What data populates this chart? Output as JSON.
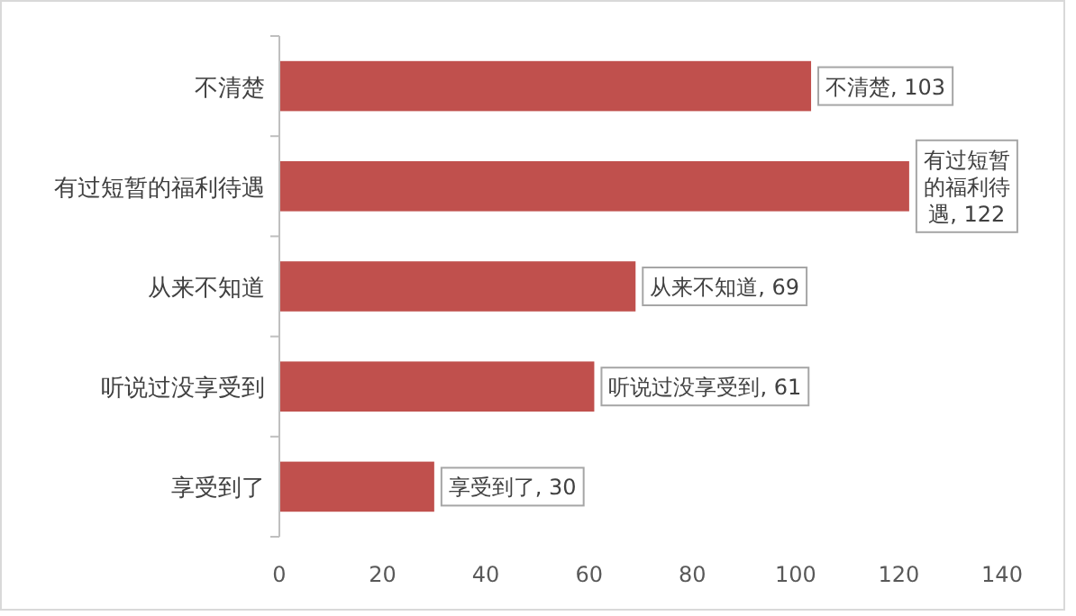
{
  "chart_data": {
    "type": "bar",
    "orientation": "horizontal",
    "categories": [
      "不清楚",
      "有过短暂的福利待遇",
      "从来不知道",
      "听说过没享受到",
      "享受到了"
    ],
    "values": [
      103,
      122,
      69,
      61,
      30
    ],
    "color": "#c0504d",
    "value_labels": [
      "不清楚, 103",
      "有过短暂的福利待遇, 122",
      "从来不知道, 69",
      "听说过没享受到, 61",
      "享受到了, 30"
    ],
    "xlim": [
      0,
      140
    ],
    "xticks": [
      0,
      20,
      40,
      60,
      80,
      100,
      120,
      140
    ],
    "grid": false
  }
}
